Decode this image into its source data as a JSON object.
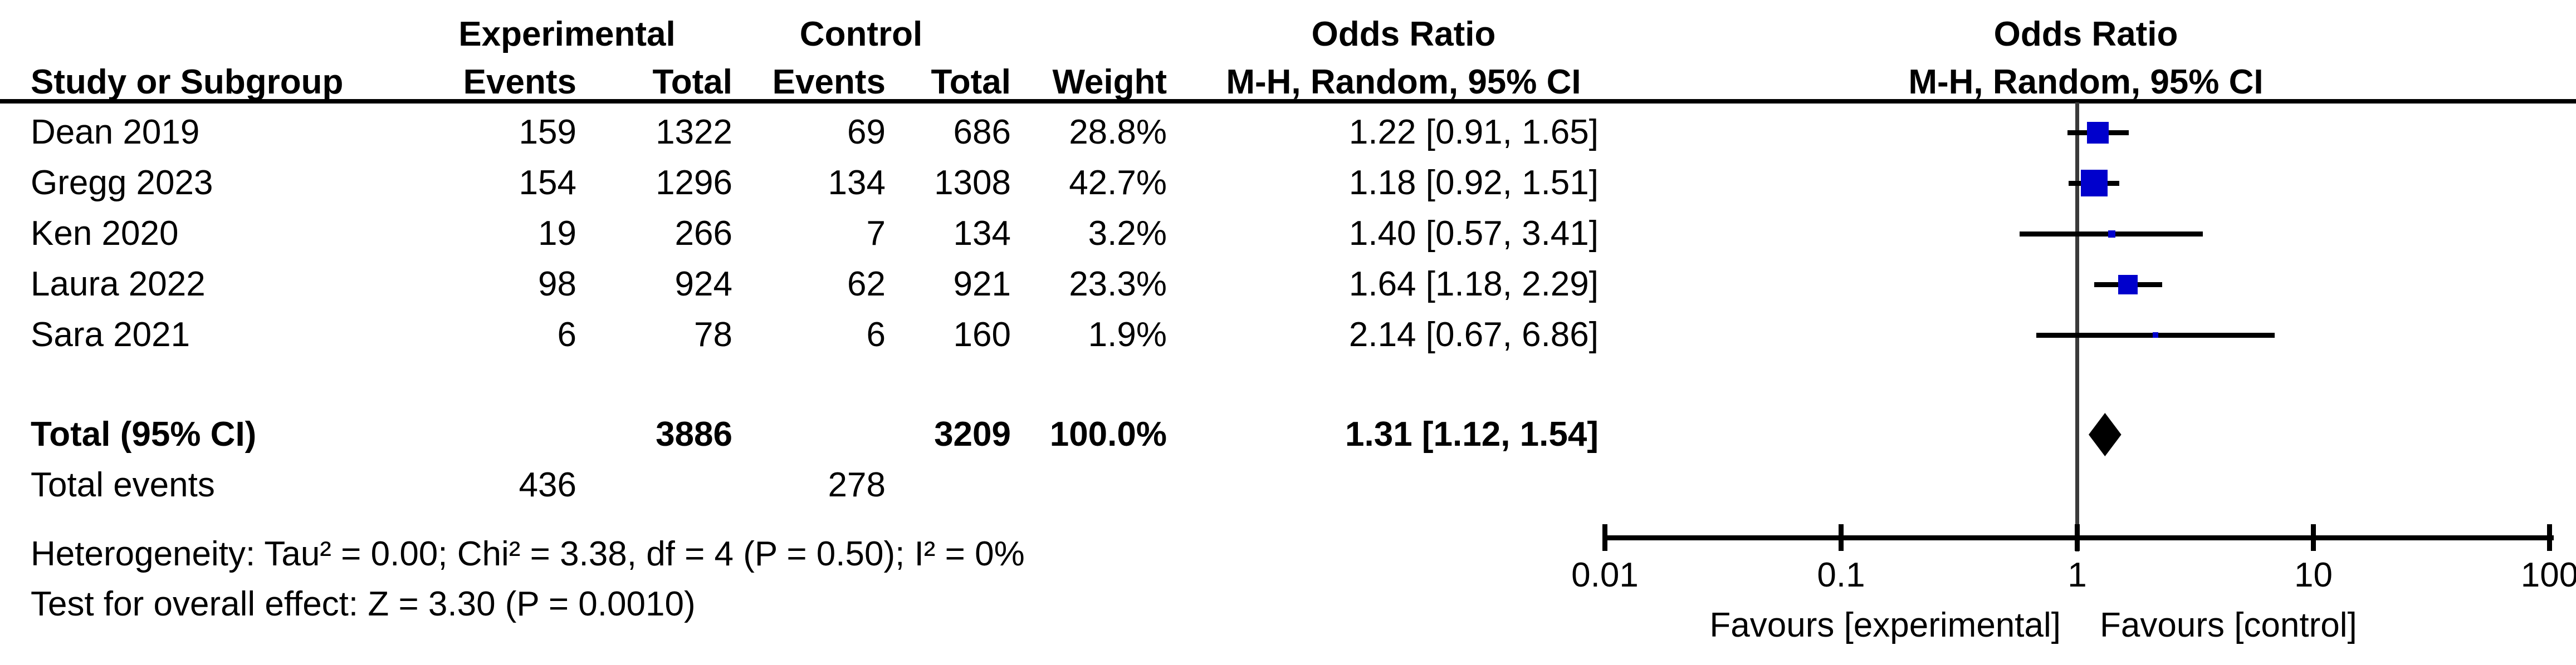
{
  "header": {
    "group_experimental": "Experimental",
    "group_control": "Control",
    "or_col_line1": "Odds Ratio",
    "or_col_line2": "M-H, Random, 95% CI",
    "plot_line1": "Odds Ratio",
    "plot_line2": "M-H, Random, 95% CI",
    "study": "Study or Subgroup",
    "events": "Events",
    "total": "Total",
    "weight": "Weight"
  },
  "studies": [
    {
      "name": "Dean 2019",
      "exp_events": "159",
      "exp_total": "1322",
      "ctrl_events": "69",
      "ctrl_total": "686",
      "weight": "28.8%",
      "or_ci": "1.22 [0.91, 1.65]"
    },
    {
      "name": "Gregg 2023",
      "exp_events": "154",
      "exp_total": "1296",
      "ctrl_events": "134",
      "ctrl_total": "1308",
      "weight": "42.7%",
      "or_ci": "1.18 [0.92, 1.51]"
    },
    {
      "name": "Ken 2020",
      "exp_events": "19",
      "exp_total": "266",
      "ctrl_events": "7",
      "ctrl_total": "134",
      "weight": "3.2%",
      "or_ci": "1.40 [0.57, 3.41]"
    },
    {
      "name": "Laura 2022",
      "exp_events": "98",
      "exp_total": "924",
      "ctrl_events": "62",
      "ctrl_total": "921",
      "weight": "23.3%",
      "or_ci": "1.64 [1.18, 2.29]"
    },
    {
      "name": "Sara 2021",
      "exp_events": "6",
      "exp_total": "78",
      "ctrl_events": "6",
      "ctrl_total": "160",
      "weight": "1.9%",
      "or_ci": "2.14 [0.67, 6.86]"
    }
  ],
  "totals": {
    "label": "Total (95% CI)",
    "exp_total": "3886",
    "ctrl_total": "3209",
    "weight": "100.0%",
    "or_ci": "1.31 [1.12, 1.54]"
  },
  "total_events": {
    "label": "Total events",
    "exp": "436",
    "ctrl": "278"
  },
  "footnotes": {
    "heterogeneity": "Heterogeneity: Tau² = 0.00; Chi² = 3.38, df = 4 (P = 0.50); I² = 0%",
    "overall_effect": "Test for overall effect: Z = 3.30 (P = 0.0010)"
  },
  "axis": {
    "tick_labels": [
      "0.01",
      "0.1",
      "1",
      "10",
      "100"
    ],
    "favours_left": "Favours [experimental]",
    "favours_right": "Favours [control]"
  },
  "colors": {
    "marker_blue": "#0000CC",
    "line_black": "#000000",
    "null_line_gray": "#3A3A3A"
  },
  "chart_data": {
    "type": "scatter",
    "subtype": "forest-plot",
    "title": "Odds Ratio  M-H, Random, 95% CI",
    "x_scale": "log10",
    "xlim": [
      0.01,
      100
    ],
    "x_ticks": [
      0.01,
      0.1,
      1,
      10,
      100
    ],
    "null_line_at": 1,
    "legend_position": "none",
    "grid": false,
    "studies": [
      {
        "name": "Dean 2019",
        "or": 1.22,
        "ci_low": 0.91,
        "ci_high": 1.65,
        "weight_pct": 28.8
      },
      {
        "name": "Gregg 2023",
        "or": 1.18,
        "ci_low": 0.92,
        "ci_high": 1.51,
        "weight_pct": 42.7
      },
      {
        "name": "Ken 2020",
        "or": 1.4,
        "ci_low": 0.57,
        "ci_high": 3.41,
        "weight_pct": 3.2
      },
      {
        "name": "Laura 2022",
        "or": 1.64,
        "ci_low": 1.18,
        "ci_high": 2.29,
        "weight_pct": 23.3
      },
      {
        "name": "Sara 2021",
        "or": 2.14,
        "ci_low": 0.67,
        "ci_high": 6.86,
        "weight_pct": 1.9
      }
    ],
    "pooled": {
      "label": "Total (95% CI)",
      "or": 1.31,
      "ci_low": 1.12,
      "ci_high": 1.54,
      "weight_pct": 100.0
    },
    "xlabel_left": "Favours [experimental]",
    "xlabel_right": "Favours [control]"
  }
}
